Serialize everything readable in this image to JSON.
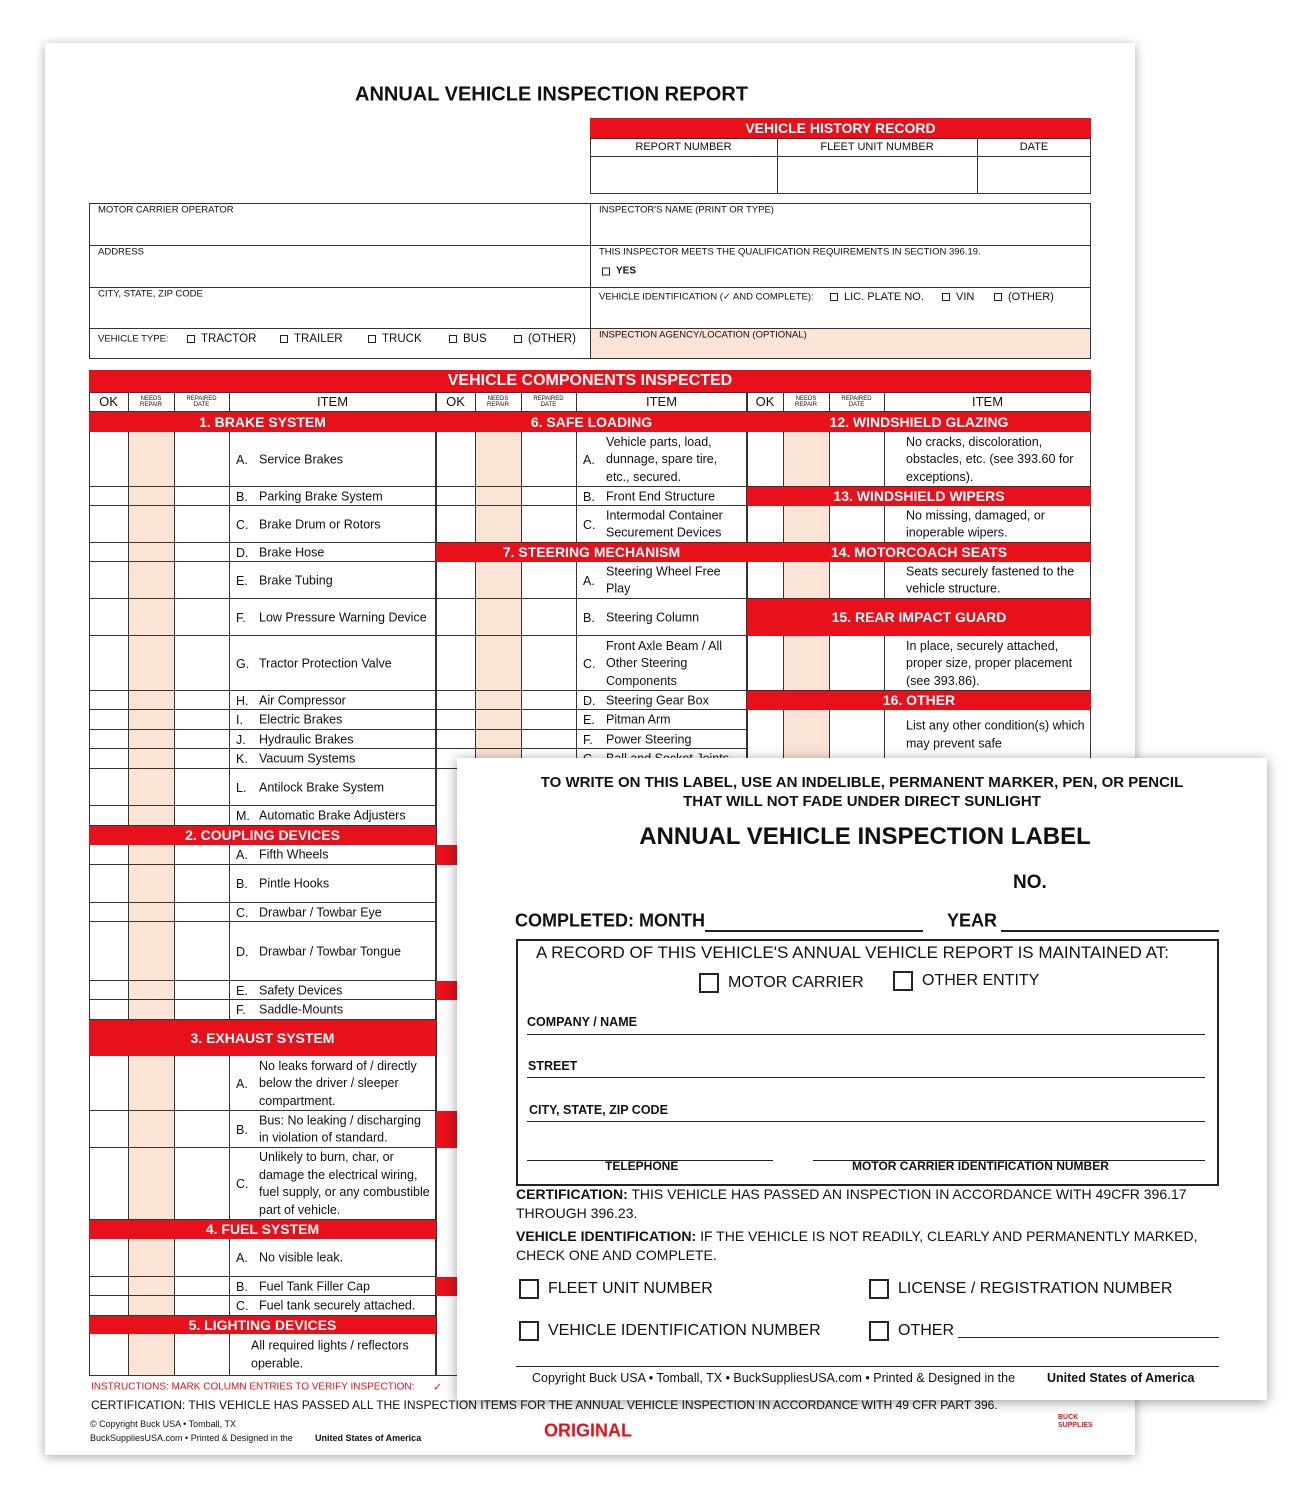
{
  "report": {
    "title": "ANNUAL VEHICLE INSPECTION REPORT",
    "history": {
      "title": "VEHICLE HISTORY RECORD",
      "columns": [
        "REPORT NUMBER",
        "FLEET UNIT NUMBER",
        "DATE"
      ]
    },
    "fields": {
      "motor_carrier": "MOTOR CARRIER OPERATOR",
      "address": "ADDRESS",
      "city_state_zip": "CITY, STATE, ZIP CODE",
      "vehicle_type": {
        "label": "VEHICLE TYPE:",
        "options": [
          "TRACTOR",
          "TRAILER",
          "TRUCK",
          "BUS",
          "(OTHER)"
        ]
      },
      "inspector_name": "INSPECTOR'S NAME (PRINT OR TYPE)",
      "qualification": {
        "text": "THIS INSPECTOR MEETS THE QUALIFICATION REQUIREMENTS IN SECTION 396.19.",
        "option": "YES"
      },
      "vehicle_identification": {
        "label": "VEHICLE IDENTIFICATION (✓ AND COMPLETE):",
        "options": [
          "LIC. PLATE NO.",
          "VIN",
          "(OTHER)"
        ]
      },
      "inspection_agency": "INSPECTION AGENCY/LOCATION (OPTIONAL)"
    },
    "components": {
      "title": "VEHICLE COMPONENTS INSPECTED",
      "headers": [
        "OK",
        "NEEDS REPAIR",
        "REPAIRED DATE",
        "ITEM"
      ],
      "columns": [
        [
          {
            "section": "1. BRAKE SYSTEM"
          },
          {
            "letter": "A.",
            "text": "Service Brakes"
          },
          {
            "letter": "B.",
            "text": "Parking Brake System"
          },
          {
            "letter": "C.",
            "text": "Brake Drum or Rotors"
          },
          {
            "letter": "D.",
            "text": "Brake Hose"
          },
          {
            "letter": "E.",
            "text": "Brake Tubing"
          },
          {
            "letter": "F.",
            "text": "Low Pressure Warning Device"
          },
          {
            "letter": "G.",
            "text": "Tractor Protection Valve"
          },
          {
            "letter": "H.",
            "text": "Air Compressor"
          },
          {
            "letter": "I.",
            "text": "Electric Brakes"
          },
          {
            "letter": "J.",
            "text": "Hydraulic Brakes"
          },
          {
            "letter": "K.",
            "text": "Vacuum Systems"
          },
          {
            "letter": "L.",
            "text": "Antilock Brake System"
          },
          {
            "letter": "M.",
            "text": "Automatic Brake Adjusters"
          },
          {
            "section": "2. COUPLING DEVICES"
          },
          {
            "letter": "A.",
            "text": "Fifth Wheels"
          },
          {
            "letter": "B.",
            "text": "Pintle Hooks"
          },
          {
            "letter": "C.",
            "text": "Drawbar / Towbar Eye"
          },
          {
            "letter": "D.",
            "text": "Drawbar / Towbar Tongue"
          },
          {
            "letter": "E.",
            "text": "Safety Devices"
          },
          {
            "letter": "F.",
            "text": "Saddle-Mounts"
          },
          {
            "section": "3. EXHAUST SYSTEM"
          },
          {
            "letter": "A.",
            "text": "No leaks forward of / directly below the driver / sleeper compartment."
          },
          {
            "letter": "B.",
            "text": "Bus: No leaking / discharging in violation of standard."
          },
          {
            "letter": "C.",
            "text": "Unlikely to burn, char, or damage the electrical wiring, fuel supply, or any combustible part of vehicle."
          },
          {
            "section": "4. FUEL SYSTEM"
          },
          {
            "letter": "A.",
            "text": "No visible leak."
          },
          {
            "letter": "B.",
            "text": "Fuel Tank Filler Cap"
          },
          {
            "letter": "C.",
            "text": "Fuel tank securely attached."
          },
          {
            "section": "5. LIGHTING DEVICES"
          },
          {
            "text": "All required lights / reflectors operable."
          }
        ],
        [
          {
            "section": "6. SAFE LOADING"
          },
          {
            "letter": "A.",
            "text": "Vehicle parts, load, dunnage, spare tire, etc., secured."
          },
          {
            "letter": "B.",
            "text": "Front End Structure"
          },
          {
            "letter": "C.",
            "text": "Intermodal Container Securement Devices"
          },
          {
            "section": "7. STEERING MECHANISM"
          },
          {
            "letter": "A.",
            "text": "Steering Wheel Free Play"
          },
          {
            "letter": "B.",
            "text": "Steering Column"
          },
          {
            "letter": "C.",
            "text": "Front Axle Beam / All Other Steering Components"
          },
          {
            "letter": "D.",
            "text": "Steering Gear Box"
          },
          {
            "letter": "E.",
            "text": "Pitman Arm"
          },
          {
            "letter": "F.",
            "text": "Power Steering"
          },
          {
            "letter": "G.",
            "text": "Ball and Socket Joints"
          }
        ],
        [
          {
            "section": "12. WINDSHIELD GLAZING"
          },
          {
            "text": "No cracks, discoloration, obstacles, etc. (see 393.60 for exceptions)."
          },
          {
            "section": "13. WINDSHIELD WIPERS"
          },
          {
            "text": "No missing, damaged, or inoperable wipers."
          },
          {
            "section": "14. MOTORCOACH SEATS"
          },
          {
            "text": "Seats securely fastened to the vehicle structure."
          },
          {
            "section": "15. REAR IMPACT GUARD"
          },
          {
            "text": "In place, securely attached, proper size, proper placement (see 393.86)."
          },
          {
            "section": "16. OTHER"
          },
          {
            "text": "List any other condition(s) which may prevent safe"
          }
        ]
      ]
    },
    "instructions": "INSTRUCTIONS: MARK COLUMN ENTRIES TO VERIFY INSPECTION:",
    "instructions_mark": "✓",
    "certification": "CERTIFICATION: THIS VEHICLE HAS PASSED ALL THE INSPECTION ITEMS FOR THE ANNUAL VEHICLE INSPECTION IN ACCORDANCE WITH 49 CFR PART 396.",
    "copyright": "© Copyright Buck USA • Tomball, TX",
    "footer_prefix": "BuckSuppliesUSA.com • Printed & Designed in the",
    "footer_country": "United States of America",
    "stamp": "ORIGINAL",
    "logo": "BUCK SUPPLIES"
  },
  "label": {
    "notice": [
      "TO WRITE ON THIS LABEL, USE AN INDELIBLE, PERMANENT MARKER, PEN, OR PENCIL",
      "THAT WILL NOT FADE UNDER DIRECT SUNLIGHT"
    ],
    "title": "ANNUAL VEHICLE INSPECTION LABEL",
    "number": "NO.",
    "completed": "COMPLETED: MONTH",
    "year": "YEAR",
    "record": "A RECORD OF THIS VEHICLE'S ANNUAL VEHICLE REPORT IS MAINTAINED AT:",
    "record_options": [
      "MOTOR CARRIER",
      "OTHER ENTITY"
    ],
    "lines": [
      "COMPANY / NAME",
      "STREET",
      "CITY, STATE, ZIP CODE"
    ],
    "telephone": "TELEPHONE",
    "carrier_id": "MOTOR CARRIER IDENTIFICATION NUMBER",
    "certification_head": "CERTIFICATION:",
    "certification": "THIS VEHICLE HAS PASSED AN INSPECTION IN ACCORDANCE WITH 49CFR 396.17 THROUGH 396.23.",
    "identification_head": "VEHICLE IDENTIFICATION:",
    "identification": "IF THE VEHICLE IS NOT READILY, CLEARLY AND PERMANENTLY MARKED, CHECK ONE AND COMPLETE.",
    "id_options": [
      "FLEET UNIT NUMBER",
      "LICENSE / REGISTRATION NUMBER",
      "VEHICLE IDENTIFICATION NUMBER",
      "OTHER"
    ],
    "footer": "Copyright Buck USA • Tomball, TX • BuckSuppliesUSA.com • Printed & Designed in the",
    "footer_country": "United States of America"
  }
}
